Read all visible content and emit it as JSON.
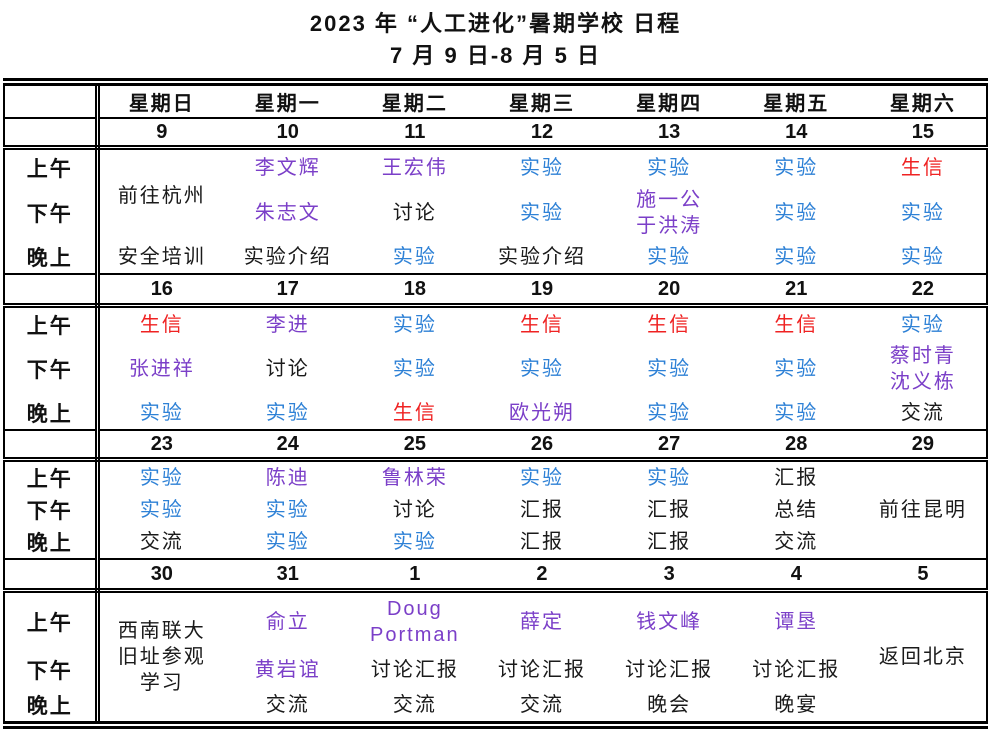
{
  "title": {
    "line1": "2023 年 “人工进化”暑期学校 日程",
    "line2": "7 月 9 日-8 月 5 日"
  },
  "colors": {
    "plain": "#1a1a1a",
    "name": "#7b3fc8",
    "lab": "#2e81d6",
    "bio": "#ef2222"
  },
  "weekday_header": [
    "星期日",
    "星期一",
    "星期二",
    "星期三",
    "星期四",
    "星期五",
    "星期六"
  ],
  "time_labels": [
    "上午",
    "下午",
    "晚上"
  ],
  "weeks": [
    {
      "dates": [
        "9",
        "10",
        "11",
        "12",
        "13",
        "14",
        "15"
      ],
      "cells": {
        "am": [
          {
            "t": "前往杭州",
            "c": "plain",
            "rs": 2
          },
          {
            "t": "李文辉",
            "c": "name"
          },
          {
            "t": "王宏伟",
            "c": "name"
          },
          {
            "t": "实验",
            "c": "lab"
          },
          {
            "t": "实验",
            "c": "lab"
          },
          {
            "t": "实验",
            "c": "lab"
          },
          {
            "t": "生信",
            "c": "bio"
          }
        ],
        "pm": [
          null,
          {
            "t": "朱志文",
            "c": "name"
          },
          {
            "t": "讨论",
            "c": "plain"
          },
          {
            "t": "实验",
            "c": "lab"
          },
          {
            "t": "施一公\n于洪涛",
            "c": "name"
          },
          {
            "t": "实验",
            "c": "lab"
          },
          {
            "t": "实验",
            "c": "lab"
          }
        ],
        "eve": [
          {
            "t": "安全培训",
            "c": "plain"
          },
          {
            "t": "实验介绍",
            "c": "plain"
          },
          {
            "t": "实验",
            "c": "lab"
          },
          {
            "t": "实验介绍",
            "c": "plain"
          },
          {
            "t": "实验",
            "c": "lab"
          },
          {
            "t": "实验",
            "c": "lab"
          },
          {
            "t": "实验",
            "c": "lab"
          }
        ]
      }
    },
    {
      "dates": [
        "16",
        "17",
        "18",
        "19",
        "20",
        "21",
        "22"
      ],
      "cells": {
        "am": [
          {
            "t": "生信",
            "c": "bio"
          },
          {
            "t": "李进",
            "c": "name"
          },
          {
            "t": "实验",
            "c": "lab"
          },
          {
            "t": "生信",
            "c": "bio"
          },
          {
            "t": "生信",
            "c": "bio"
          },
          {
            "t": "生信",
            "c": "bio"
          },
          {
            "t": "实验",
            "c": "lab"
          }
        ],
        "pm": [
          {
            "t": "张进祥",
            "c": "name"
          },
          {
            "t": "讨论",
            "c": "plain"
          },
          {
            "t": "实验",
            "c": "lab"
          },
          {
            "t": "实验",
            "c": "lab"
          },
          {
            "t": "实验",
            "c": "lab"
          },
          {
            "t": "实验",
            "c": "lab"
          },
          {
            "t": "蔡时青\n沈义栋",
            "c": "name"
          }
        ],
        "eve": [
          {
            "t": "实验",
            "c": "lab"
          },
          {
            "t": "实验",
            "c": "lab"
          },
          {
            "t": "生信",
            "c": "bio"
          },
          {
            "t": "欧光朔",
            "c": "name"
          },
          {
            "t": "实验",
            "c": "lab"
          },
          {
            "t": "实验",
            "c": "lab"
          },
          {
            "t": "交流",
            "c": "plain"
          }
        ]
      }
    },
    {
      "dates": [
        "23",
        "24",
        "25",
        "26",
        "27",
        "28",
        "29"
      ],
      "cells": {
        "am": [
          {
            "t": "实验",
            "c": "lab"
          },
          {
            "t": "陈迪",
            "c": "name"
          },
          {
            "t": "鲁林荣",
            "c": "name"
          },
          {
            "t": "实验",
            "c": "lab"
          },
          {
            "t": "实验",
            "c": "lab"
          },
          {
            "t": "汇报",
            "c": "plain"
          },
          {
            "t": "前往昆明",
            "c": "plain",
            "rs": 3
          }
        ],
        "pm": [
          {
            "t": "实验",
            "c": "lab"
          },
          {
            "t": "实验",
            "c": "lab"
          },
          {
            "t": "讨论",
            "c": "plain"
          },
          {
            "t": "汇报",
            "c": "plain"
          },
          {
            "t": "汇报",
            "c": "plain"
          },
          {
            "t": "总结",
            "c": "plain"
          },
          null
        ],
        "eve": [
          {
            "t": "交流",
            "c": "plain"
          },
          {
            "t": "实验",
            "c": "lab"
          },
          {
            "t": "实验",
            "c": "lab"
          },
          {
            "t": "汇报",
            "c": "plain"
          },
          {
            "t": "汇报",
            "c": "plain"
          },
          {
            "t": "交流",
            "c": "plain"
          },
          null
        ]
      }
    },
    {
      "dates": [
        "30",
        "31",
        "1",
        "2",
        "3",
        "4",
        "5"
      ],
      "cells": {
        "am": [
          {
            "t": "西南联大\n旧址参观\n学习",
            "c": "plain",
            "rs": 3
          },
          {
            "t": "俞立",
            "c": "name"
          },
          {
            "t": "Doug\nPortman",
            "c": "name"
          },
          {
            "t": "薛定",
            "c": "name"
          },
          {
            "t": "钱文峰",
            "c": "name"
          },
          {
            "t": "谭垦",
            "c": "name"
          },
          {
            "t": "返回北京",
            "c": "plain",
            "rs": 3
          }
        ],
        "pm": [
          null,
          {
            "t": "黄岩谊",
            "c": "name"
          },
          {
            "t": "讨论汇报",
            "c": "plain"
          },
          {
            "t": "讨论汇报",
            "c": "plain"
          },
          {
            "t": "讨论汇报",
            "c": "plain"
          },
          {
            "t": "讨论汇报",
            "c": "plain"
          },
          null
        ],
        "eve": [
          null,
          {
            "t": "交流",
            "c": "plain"
          },
          {
            "t": "交流",
            "c": "plain"
          },
          {
            "t": "交流",
            "c": "plain"
          },
          {
            "t": "晚会",
            "c": "plain"
          },
          {
            "t": "晚宴",
            "c": "plain"
          },
          null
        ]
      }
    }
  ]
}
